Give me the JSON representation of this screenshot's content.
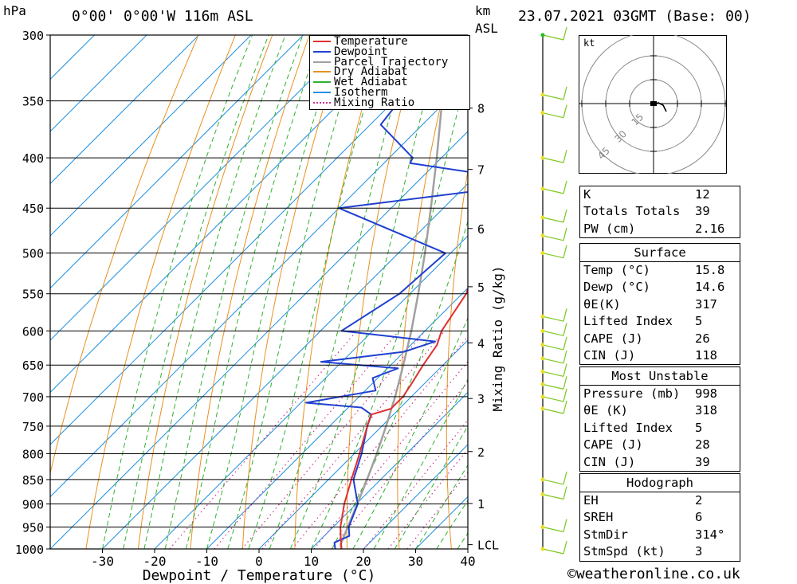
{
  "header": {
    "pressure_unit": "hPa",
    "location": "0°00' 0°00'W 116m ASL",
    "km_label": "km",
    "asl_label": "ASL",
    "datetime": "23.07.2021 03GMT (Base: 00)"
  },
  "legend": [
    {
      "label": "Temperature",
      "color": "#e03030",
      "style": "solid"
    },
    {
      "label": "Dewpoint",
      "color": "#2040d0",
      "style": "solid"
    },
    {
      "label": "Parcel Trajectory",
      "color": "#a0a0a0",
      "style": "solid"
    },
    {
      "label": "Dry Adiabat",
      "color": "#e89020",
      "style": "solid"
    },
    {
      "label": "Wet Adiabat",
      "color": "#30b030",
      "style": "solid"
    },
    {
      "label": "Isotherm",
      "color": "#2090e0",
      "style": "solid"
    },
    {
      "label": "Mixing Ratio",
      "color": "#d03090",
      "style": "dotted"
    }
  ],
  "chart_data": {
    "type": "line",
    "title": "Skew-T log-P diagram",
    "xlabel": "Dewpoint / Temperature (°C)",
    "ylabel": "hPa",
    "y2label": "Mixing Ratio (g/kg)",
    "xlim": [
      -40,
      40
    ],
    "ylim": [
      1000,
      300
    ],
    "x_ticks": [
      -30,
      -20,
      -10,
      0,
      10,
      20,
      30,
      40
    ],
    "pressure_levels": [
      300,
      350,
      400,
      450,
      500,
      550,
      600,
      650,
      700,
      750,
      800,
      850,
      900,
      950,
      1000
    ],
    "km_ticks": [
      {
        "label": "8",
        "p": 356
      },
      {
        "label": "7",
        "p": 411
      },
      {
        "label": "6",
        "p": 472
      },
      {
        "label": "5",
        "p": 541
      },
      {
        "label": "4",
        "p": 617
      },
      {
        "label": "3",
        "p": 703
      },
      {
        "label": "2",
        "p": 796
      },
      {
        "label": "1",
        "p": 899
      },
      {
        "label": "LCL",
        "p": 990
      }
    ],
    "mixing_ratio_labels": [
      "1",
      "2",
      "3",
      "4",
      "6",
      "8",
      "10",
      "15",
      "20",
      "25"
    ],
    "series": [
      {
        "name": "Temperature",
        "points": [
          [
            1000,
            15.8
          ],
          [
            975,
            13.6
          ],
          [
            950,
            11.4
          ],
          [
            925,
            9.6
          ],
          [
            900,
            7.7
          ],
          [
            850,
            4.4
          ],
          [
            800,
            1.0
          ],
          [
            750,
            -2.8
          ],
          [
            730,
            -4.3
          ],
          [
            720,
            -1.6
          ],
          [
            700,
            -1.6
          ],
          [
            680,
            -2.4
          ],
          [
            650,
            -3.8
          ],
          [
            620,
            -5.0
          ],
          [
            600,
            -6.8
          ],
          [
            550,
            -9.2
          ],
          [
            500,
            -14.5
          ],
          [
            450,
            -20.0
          ],
          [
            420,
            -24.0
          ],
          [
            400,
            -26.0
          ],
          [
            350,
            -31.0
          ],
          [
            300,
            -37.5
          ]
        ]
      },
      {
        "name": "Dewpoint",
        "points": [
          [
            1000,
            14.6
          ],
          [
            985,
            13.2
          ],
          [
            970,
            14.8
          ],
          [
            950,
            13.0
          ],
          [
            900,
            10.3
          ],
          [
            850,
            4.8
          ],
          [
            800,
            1.4
          ],
          [
            750,
            -2.8
          ],
          [
            730,
            -4.2
          ],
          [
            718,
            -7.5
          ],
          [
            710,
            -19.0
          ],
          [
            690,
            -8.0
          ],
          [
            670,
            -11.0
          ],
          [
            655,
            -8.0
          ],
          [
            645,
            -24.0
          ],
          [
            630,
            -10.0
          ],
          [
            615,
            -6.0
          ],
          [
            600,
            -26.0
          ],
          [
            550,
            -22.0
          ],
          [
            500,
            -21.0
          ],
          [
            450,
            -50.0
          ],
          [
            430,
            -24.0
          ],
          [
            420,
            -22.0
          ],
          [
            405,
            -45.0
          ],
          [
            400,
            -45.5
          ],
          [
            370,
            -58.0
          ],
          [
            330,
            -60.0
          ],
          [
            300,
            -63.0
          ]
        ]
      },
      {
        "name": "Parcel Trajectory",
        "points": [
          [
            1000,
            15.8
          ],
          [
            990,
            14.8
          ],
          [
            950,
            12.8
          ],
          [
            900,
            10.2
          ],
          [
            850,
            7.4
          ],
          [
            800,
            4.3
          ],
          [
            750,
            0.8
          ],
          [
            700,
            -3.1
          ],
          [
            650,
            -7.6
          ],
          [
            600,
            -12.6
          ],
          [
            550,
            -18.4
          ],
          [
            500,
            -24.9
          ],
          [
            450,
            -32.4
          ],
          [
            400,
            -40.9
          ],
          [
            350,
            -50.8
          ],
          [
            300,
            -62.0
          ]
        ]
      }
    ]
  },
  "hodograph": {
    "unit": "kt",
    "ring_labels": [
      "15",
      "30",
      "45"
    ]
  },
  "indices": {
    "rows": [
      {
        "label": "K",
        "value": "12"
      },
      {
        "label": "Totals Totals",
        "value": "39"
      },
      {
        "label": "PW (cm)",
        "value": "2.16"
      }
    ],
    "surface": {
      "title": "Surface",
      "rows": [
        {
          "label": "Temp (°C)",
          "value": "15.8"
        },
        {
          "label": "Dewp (°C)",
          "value": "14.6"
        },
        {
          "label": "θE(K)",
          "value": "317"
        },
        {
          "label": "Lifted Index",
          "value": "5"
        },
        {
          "label": "CAPE (J)",
          "value": "26"
        },
        {
          "label": "CIN (J)",
          "value": "118"
        }
      ]
    },
    "most_unstable": {
      "title": "Most Unstable",
      "rows": [
        {
          "label": "Pressure (mb)",
          "value": "998"
        },
        {
          "label": "θE (K)",
          "value": "318"
        },
        {
          "label": "Lifted Index",
          "value": "5"
        },
        {
          "label": "CAPE (J)",
          "value": "28"
        },
        {
          "label": "CIN (J)",
          "value": "39"
        }
      ]
    },
    "hodograph_box": {
      "title": "Hodograph",
      "rows": [
        {
          "label": "EH",
          "value": "2"
        },
        {
          "label": "SREH",
          "value": "6"
        },
        {
          "label": "StmDir",
          "value": "314°"
        },
        {
          "label": "StmSpd (kt)",
          "value": "3"
        }
      ]
    }
  },
  "footer": {
    "copyright": "©weatheronline.co.uk"
  }
}
